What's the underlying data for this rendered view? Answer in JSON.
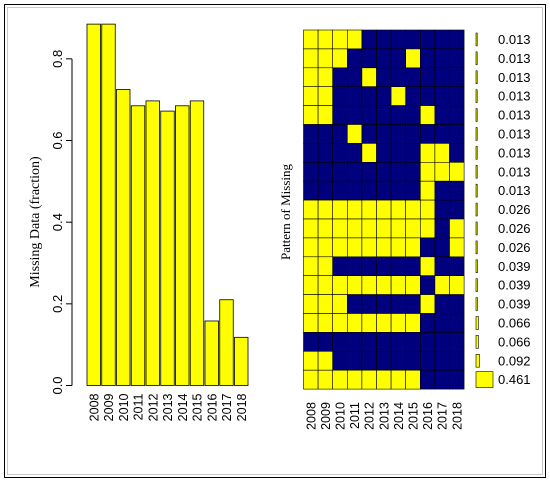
{
  "chart_data": [
    {
      "type": "bar",
      "categories": [
        "2008",
        "2009",
        "2010",
        "2011",
        "2012",
        "2013",
        "2014",
        "2015",
        "2016",
        "2017",
        "2018"
      ],
      "values": [
        0.885,
        0.885,
        0.725,
        0.685,
        0.697,
        0.672,
        0.685,
        0.697,
        0.158,
        0.21,
        0.118
      ],
      "ylabel": "Missing Data (fraction)",
      "xlabel": "",
      "ylim": [
        0,
        0.9
      ],
      "yticks": [
        "0.0",
        "0.2",
        "0.4",
        "0.6",
        "0.8"
      ],
      "ytick_values": [
        0,
        0.2,
        0.4,
        0.6,
        0.8
      ],
      "bar_color": "#FFFF00"
    },
    {
      "type": "heatmap",
      "ylabel": "Pattern of Missing",
      "columns": [
        "2008",
        "2009",
        "2010",
        "2011",
        "2012",
        "2013",
        "2014",
        "2015",
        "2016",
        "2017",
        "2018"
      ],
      "legend_note": "1 = missing (yellow), 0 = observed (navy)",
      "rows": [
        [
          1,
          1,
          1,
          1,
          0,
          0,
          0,
          0,
          0,
          0,
          0
        ],
        [
          1,
          1,
          1,
          0,
          0,
          0,
          0,
          1,
          0,
          0,
          0
        ],
        [
          1,
          1,
          0,
          0,
          1,
          0,
          0,
          0,
          0,
          0,
          0
        ],
        [
          1,
          1,
          0,
          0,
          0,
          0,
          1,
          0,
          0,
          0,
          0
        ],
        [
          1,
          1,
          0,
          0,
          0,
          0,
          0,
          0,
          1,
          0,
          0
        ],
        [
          0,
          0,
          0,
          1,
          0,
          0,
          0,
          0,
          0,
          0,
          0
        ],
        [
          0,
          0,
          0,
          0,
          1,
          0,
          0,
          0,
          1,
          1,
          0
        ],
        [
          0,
          0,
          0,
          0,
          0,
          0,
          0,
          0,
          1,
          1,
          1
        ],
        [
          0,
          0,
          0,
          0,
          0,
          0,
          0,
          0,
          1,
          0,
          0
        ],
        [
          1,
          1,
          1,
          1,
          1,
          1,
          1,
          1,
          1,
          0,
          0
        ],
        [
          1,
          1,
          1,
          1,
          1,
          1,
          1,
          1,
          1,
          0,
          1
        ],
        [
          1,
          1,
          1,
          1,
          1,
          1,
          1,
          1,
          0,
          0,
          1
        ],
        [
          1,
          1,
          0,
          0,
          0,
          0,
          0,
          0,
          1,
          0,
          0
        ],
        [
          1,
          1,
          1,
          1,
          1,
          1,
          1,
          1,
          0,
          1,
          1
        ],
        [
          1,
          1,
          1,
          0,
          0,
          0,
          0,
          0,
          1,
          0,
          0
        ],
        [
          1,
          1,
          1,
          1,
          1,
          1,
          1,
          1,
          0,
          0,
          0
        ],
        [
          0,
          0,
          0,
          0,
          0,
          0,
          0,
          0,
          0,
          0,
          0
        ],
        [
          1,
          1,
          0,
          0,
          0,
          0,
          0,
          0,
          0,
          0,
          0
        ],
        [
          1,
          1,
          1,
          1,
          1,
          1,
          1,
          1,
          0,
          0,
          0
        ]
      ],
      "row_fractions": [
        "0.013",
        "0.013",
        "0.013",
        "0.013",
        "0.013",
        "0.013",
        "0.013",
        "0.013",
        "0.013",
        "0.026",
        "0.026",
        "0.026",
        "0.039",
        "0.039",
        "0.039",
        "0.066",
        "0.066",
        "0.092",
        "0.461"
      ],
      "row_fraction_values": [
        0.013,
        0.013,
        0.013,
        0.013,
        0.013,
        0.013,
        0.013,
        0.013,
        0.013,
        0.026,
        0.026,
        0.026,
        0.039,
        0.039,
        0.039,
        0.066,
        0.066,
        0.092,
        0.461
      ],
      "colors": {
        "missing": "#FFFF00",
        "observed": "#00007F"
      }
    }
  ]
}
